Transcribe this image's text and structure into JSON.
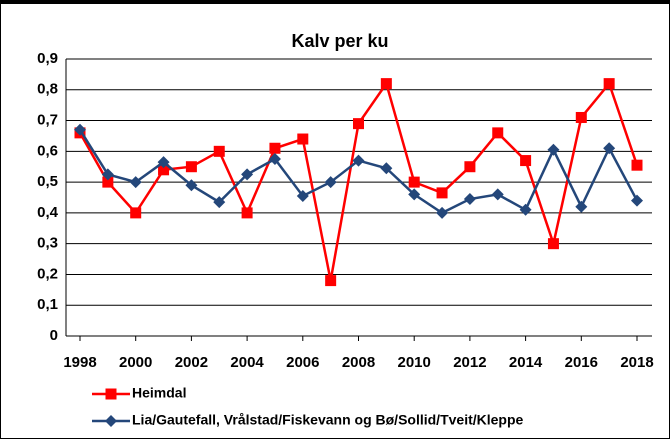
{
  "chart_data": {
    "type": "line",
    "title": "Kalv per ku",
    "x": [
      1998,
      1999,
      2000,
      2001,
      2002,
      2003,
      2004,
      2005,
      2006,
      2007,
      2008,
      2009,
      2010,
      2011,
      2012,
      2013,
      2014,
      2015,
      2016,
      2017,
      2018
    ],
    "series": [
      {
        "name": "Heimdal",
        "color": "#ff0000",
        "marker": "square",
        "values": [
          0.66,
          0.5,
          0.4,
          0.54,
          0.55,
          0.6,
          0.4,
          0.61,
          0.64,
          0.18,
          0.69,
          0.82,
          0.5,
          0.465,
          0.55,
          0.66,
          0.57,
          0.3,
          0.71,
          0.82,
          0.555
        ]
      },
      {
        "name": "Lia/Gautefall, Vrålstad/Fiskevann og Bø/Sollid/Tveit/Kleppe",
        "color": "#24477a",
        "marker": "diamond",
        "values": [
          0.67,
          0.525,
          0.5,
          0.565,
          0.49,
          0.435,
          0.525,
          0.575,
          0.455,
          0.5,
          0.57,
          0.545,
          0.46,
          0.4,
          0.445,
          0.46,
          0.41,
          0.605,
          0.42,
          0.61,
          0.44
        ]
      }
    ],
    "xlim": [
      1998,
      2018
    ],
    "xticks": [
      1998,
      2000,
      2002,
      2004,
      2006,
      2008,
      2010,
      2012,
      2014,
      2016,
      2018
    ],
    "ylim": [
      0,
      0.9
    ],
    "yticks": [
      0,
      {
        "value": 0.1,
        "label": "0,1"
      },
      {
        "value": 0.2,
        "label": "0,2"
      },
      {
        "value": 0.3,
        "label": "0,3"
      },
      {
        "value": 0.4,
        "label": "0,4"
      },
      {
        "value": 0.5,
        "label": "0,5"
      },
      {
        "value": 0.6,
        "label": "0,6"
      },
      {
        "value": 0.7,
        "label": "0,7"
      },
      {
        "value": 0.8,
        "label": "0,8"
      },
      {
        "value": 0.9,
        "label": "0,9"
      }
    ],
    "grid": true
  }
}
